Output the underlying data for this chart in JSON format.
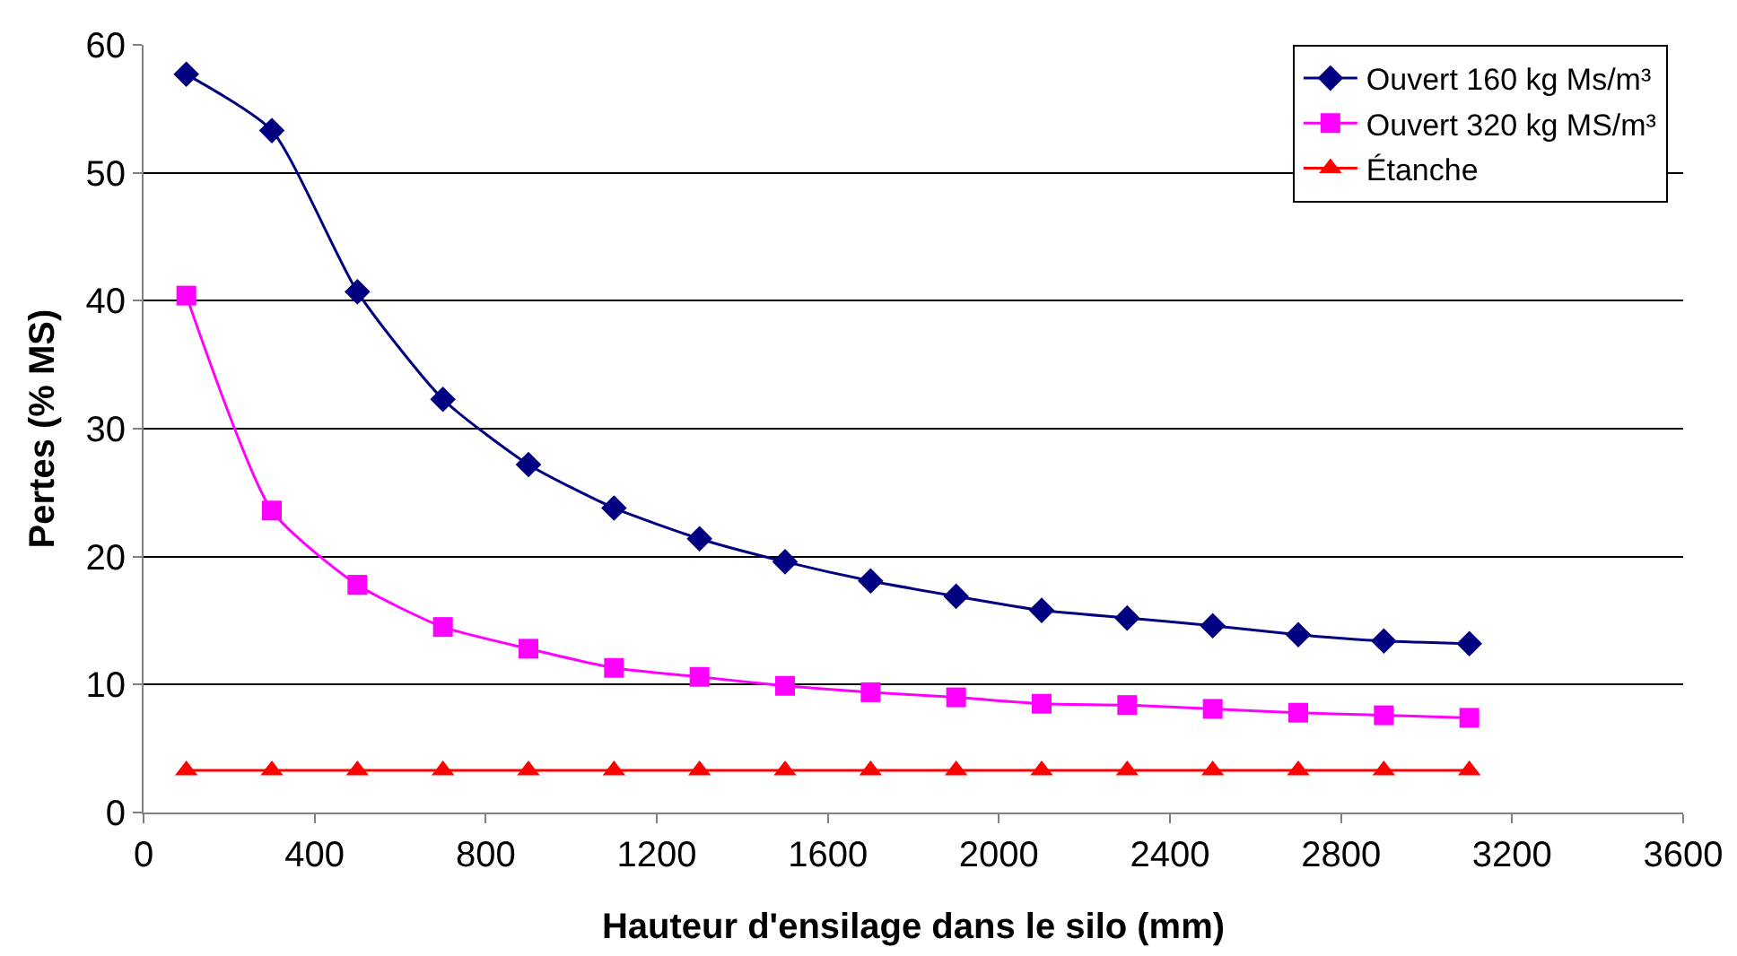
{
  "chart_data": {
    "type": "line",
    "xlabel": "Hauteur d'ensilage dans le silo (mm)",
    "ylabel": "Pertes (% MS)",
    "x": [
      100,
      300,
      500,
      700,
      900,
      1100,
      1300,
      1500,
      1700,
      1900,
      2100,
      2300,
      2500,
      2700,
      2900,
      3100
    ],
    "series": [
      {
        "name": "Ouvert 160 kg Ms/m³",
        "color": "#000080",
        "marker": "diamond",
        "values": [
          57.7,
          53.3,
          40.7,
          32.3,
          27.2,
          23.8,
          21.4,
          19.6,
          18.1,
          16.9,
          15.8,
          15.2,
          14.6,
          13.9,
          13.4,
          13.2
        ]
      },
      {
        "name": "Ouvert 320 kg MS/m³",
        "color": "#ff00ff",
        "marker": "square",
        "values": [
          40.4,
          23.6,
          17.8,
          14.5,
          12.8,
          11.3,
          10.6,
          9.9,
          9.4,
          9.0,
          8.5,
          8.4,
          8.1,
          7.8,
          7.6,
          7.4
        ]
      },
      {
        "name": "Étanche",
        "color": "#ff0000",
        "marker": "triangle",
        "values": [
          3.3,
          3.3,
          3.3,
          3.3,
          3.3,
          3.3,
          3.3,
          3.3,
          3.3,
          3.3,
          3.3,
          3.3,
          3.3,
          3.3,
          3.3,
          3.3
        ]
      }
    ],
    "xlim": [
      0,
      3600
    ],
    "xticks": [
      0,
      400,
      800,
      1200,
      1600,
      2000,
      2400,
      2800,
      3200,
      3600
    ],
    "ylim": [
      0,
      60
    ],
    "yticks": [
      0,
      10,
      20,
      30,
      40,
      50,
      60
    ],
    "grid": "y",
    "legend": "top right"
  }
}
